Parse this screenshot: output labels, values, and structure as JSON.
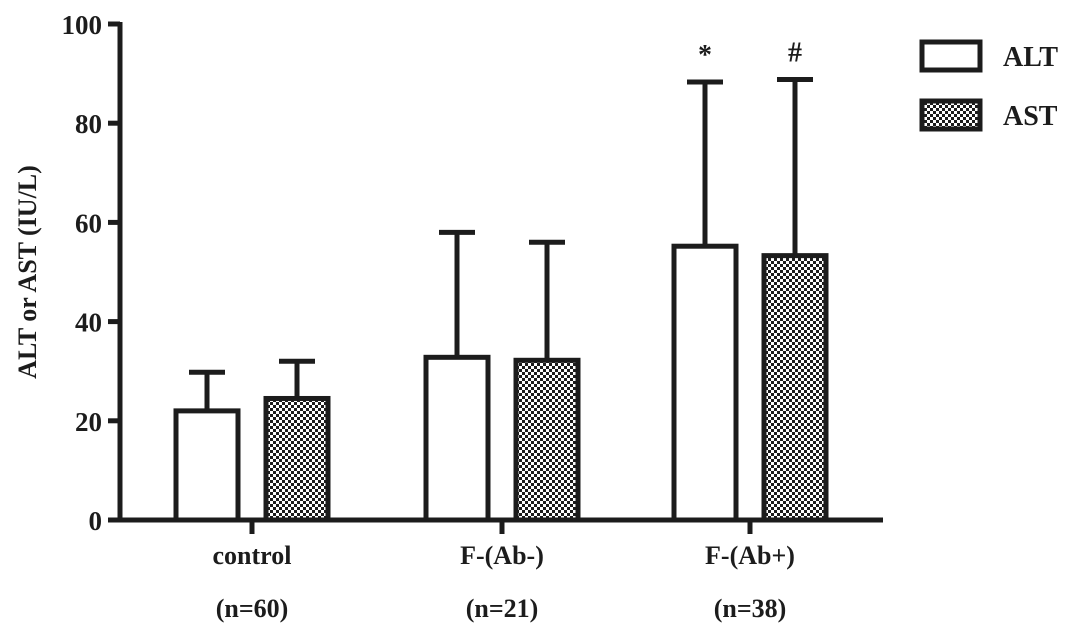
{
  "colors": {
    "ink": "#1c1c1c",
    "background": "#ffffff"
  },
  "chart_data": {
    "type": "bar",
    "ylabel": "ALT or AST (IU/L)",
    "xlabel": "",
    "ylim": [
      0,
      100
    ],
    "yticks": [
      0,
      20,
      40,
      60,
      80,
      100
    ],
    "grid": false,
    "legend_position": "top-right",
    "categories": [
      "control",
      "F-(Ab-)",
      "F-(Ab+)"
    ],
    "category_sublabels": [
      "(n=60)",
      "(n=21)",
      "(n=38)"
    ],
    "series": [
      {
        "name": "ALT",
        "fill": "open",
        "values": [
          22,
          32.8,
          55.2
        ],
        "error_upper": [
          29.8,
          58,
          88.3
        ]
      },
      {
        "name": "AST",
        "fill": "checkered",
        "values": [
          24.5,
          32.2,
          53.3
        ],
        "error_upper": [
          32,
          56,
          88.8
        ]
      }
    ],
    "annotations": [
      {
        "text": "*",
        "category": 2,
        "series": 0
      },
      {
        "text": "#",
        "category": 2,
        "series": 1
      }
    ]
  }
}
